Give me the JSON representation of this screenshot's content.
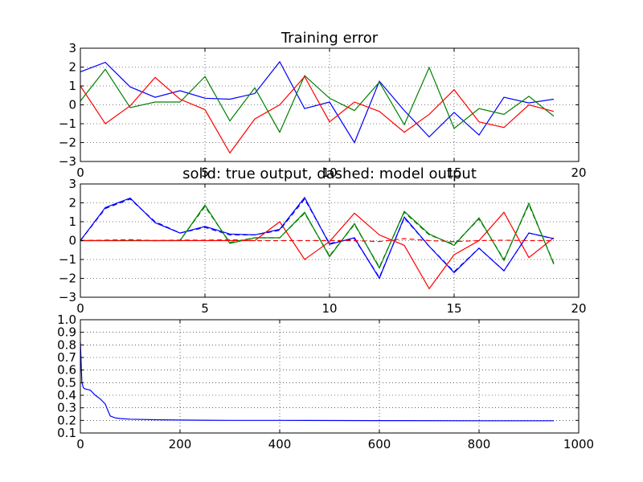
{
  "chart_data": [
    {
      "type": "line",
      "title": "Training error",
      "xlabel": "",
      "ylabel": "",
      "xlim": [
        0,
        20
      ],
      "ylim": [
        -3,
        3
      ],
      "xticks": [
        0,
        5,
        10,
        15,
        20
      ],
      "yticks": [
        -3,
        -2,
        -1,
        0,
        1,
        2,
        3
      ],
      "grid": true,
      "series": [
        {
          "color": "#0000ff",
          "style": "solid",
          "x": [
            0,
            1,
            2,
            3,
            4,
            5,
            6,
            7,
            8,
            9,
            10,
            11,
            12,
            13,
            14,
            15,
            16,
            17,
            18,
            19
          ],
          "values": [
            1.75,
            2.25,
            0.95,
            0.4,
            0.75,
            0.35,
            0.3,
            0.6,
            2.28,
            -0.2,
            0.15,
            -2.0,
            1.25,
            -0.3,
            -1.7,
            -0.4,
            -1.6,
            0.4,
            0.1,
            0.3
          ]
        },
        {
          "color": "#008000",
          "style": "solid",
          "x": [
            0,
            1,
            2,
            3,
            4,
            5,
            6,
            7,
            8,
            9,
            10,
            11,
            12,
            13,
            14,
            15,
            16,
            17,
            18,
            19
          ],
          "values": [
            0.2,
            1.88,
            -0.15,
            0.15,
            0.15,
            1.5,
            -0.85,
            0.9,
            -1.45,
            1.55,
            0.35,
            -0.3,
            1.2,
            -1.05,
            1.98,
            -1.25,
            -0.2,
            -0.5,
            0.45,
            -0.6
          ]
        },
        {
          "color": "#ff0000",
          "style": "solid",
          "x": [
            0,
            1,
            2,
            3,
            4,
            5,
            6,
            7,
            8,
            9,
            10,
            11,
            12,
            13,
            14,
            15,
            16,
            17,
            18,
            19
          ],
          "values": [
            1.0,
            -1.0,
            -0.05,
            1.45,
            0.3,
            -0.25,
            -2.55,
            -0.75,
            0.0,
            1.5,
            -0.9,
            0.15,
            -0.35,
            -1.45,
            -0.5,
            0.8,
            -0.9,
            -1.2,
            0.0,
            -0.35
          ]
        }
      ]
    },
    {
      "type": "line",
      "title": "solid: true output, dashed: model output",
      "xlabel": "",
      "ylabel": "",
      "xlim": [
        0,
        20
      ],
      "ylim": [
        -3,
        3
      ],
      "xticks": [
        0,
        5,
        10,
        15,
        20
      ],
      "yticks": [
        -3,
        -2,
        -1,
        0,
        1,
        2,
        3
      ],
      "grid": true,
      "series": [
        {
          "color": "#0000ff",
          "style": "solid",
          "x": [
            0,
            1,
            2,
            3,
            4,
            5,
            6,
            7,
            8,
            9,
            10,
            11,
            12,
            13,
            14,
            15,
            16,
            17,
            18,
            19
          ],
          "values": [
            0.0,
            1.75,
            2.25,
            0.95,
            0.4,
            0.75,
            0.35,
            0.3,
            0.6,
            2.28,
            -0.2,
            0.15,
            -2.0,
            1.25,
            -0.3,
            -1.7,
            -0.4,
            -1.6,
            0.4,
            0.1
          ]
        },
        {
          "color": "#008000",
          "style": "solid",
          "x": [
            0,
            1,
            2,
            3,
            4,
            5,
            6,
            7,
            8,
            9,
            10,
            11,
            12,
            13,
            14,
            15,
            16,
            17,
            18,
            19
          ],
          "values": [
            0.0,
            0.0,
            0.0,
            0.0,
            0.0,
            1.88,
            -0.15,
            0.15,
            0.15,
            1.5,
            -0.85,
            0.9,
            -1.45,
            1.55,
            0.35,
            -0.25,
            1.2,
            -1.05,
            1.98,
            -1.25
          ]
        },
        {
          "color": "#ff0000",
          "style": "solid",
          "x": [
            0,
            1,
            2,
            3,
            4,
            5,
            6,
            7,
            8,
            9,
            10,
            11,
            12,
            13,
            14,
            15,
            16,
            17,
            18,
            19
          ],
          "values": [
            0.0,
            0.0,
            0.0,
            0.0,
            0.0,
            0.0,
            0.0,
            0.0,
            1.0,
            -1.0,
            -0.05,
            1.45,
            0.3,
            -0.25,
            -2.55,
            -0.75,
            0.0,
            1.5,
            -0.9,
            0.15
          ]
        },
        {
          "color": "#0000ff",
          "style": "dashed",
          "x": [
            0,
            1,
            2,
            3,
            4,
            5,
            6,
            7,
            8,
            9,
            10,
            11,
            12,
            13,
            14,
            15,
            16,
            17,
            18,
            19
          ],
          "values": [
            0.0,
            1.7,
            2.2,
            1.0,
            0.4,
            0.7,
            0.3,
            0.3,
            0.55,
            2.2,
            -0.15,
            0.1,
            -1.95,
            1.2,
            -0.3,
            -1.65,
            -0.4,
            -1.6,
            0.4,
            0.1
          ]
        },
        {
          "color": "#008000",
          "style": "dashed",
          "x": [
            0,
            1,
            2,
            3,
            4,
            5,
            6,
            7,
            8,
            9,
            10,
            11,
            12,
            13,
            14,
            15,
            16,
            17,
            18,
            19
          ],
          "values": [
            0.0,
            0.02,
            0.03,
            0.0,
            0.02,
            1.8,
            -0.1,
            0.15,
            0.15,
            1.45,
            -0.8,
            0.85,
            -1.4,
            1.5,
            0.3,
            -0.2,
            1.15,
            -1.0,
            1.9,
            -1.2
          ]
        },
        {
          "color": "#ff0000",
          "style": "dashed",
          "x": [
            0,
            1,
            2,
            3,
            4,
            5,
            6,
            7,
            8,
            9,
            10,
            11,
            12,
            13,
            14,
            15,
            16,
            17,
            18,
            19
          ],
          "values": [
            0.0,
            0.02,
            0.05,
            0.0,
            0.03,
            0.02,
            0.05,
            0.0,
            0.0,
            0.0,
            0.0,
            0.0,
            -0.05,
            0.1,
            0.0,
            -0.05,
            0.0,
            0.02,
            0.0,
            0.0
          ]
        }
      ]
    },
    {
      "type": "line",
      "title": "",
      "xlabel": "",
      "ylabel": "",
      "xlim": [
        0,
        1000
      ],
      "ylim": [
        0.1,
        1.0
      ],
      "xticks": [
        0,
        200,
        400,
        600,
        800,
        1000
      ],
      "yticks": [
        0.1,
        0.2,
        0.3,
        0.4,
        0.5,
        0.6,
        0.7,
        0.8,
        0.9,
        1.0
      ],
      "grid": true,
      "series": [
        {
          "color": "#0000ff",
          "style": "solid",
          "x": [
            0,
            3,
            6,
            10,
            20,
            30,
            40,
            50,
            55,
            60,
            70,
            80,
            100,
            150,
            200,
            300,
            400,
            600,
            800,
            950
          ],
          "values": [
            0.82,
            0.5,
            0.46,
            0.45,
            0.44,
            0.4,
            0.37,
            0.33,
            0.28,
            0.235,
            0.22,
            0.215,
            0.21,
            0.205,
            0.203,
            0.2,
            0.2,
            0.198,
            0.197,
            0.197
          ]
        }
      ]
    }
  ]
}
